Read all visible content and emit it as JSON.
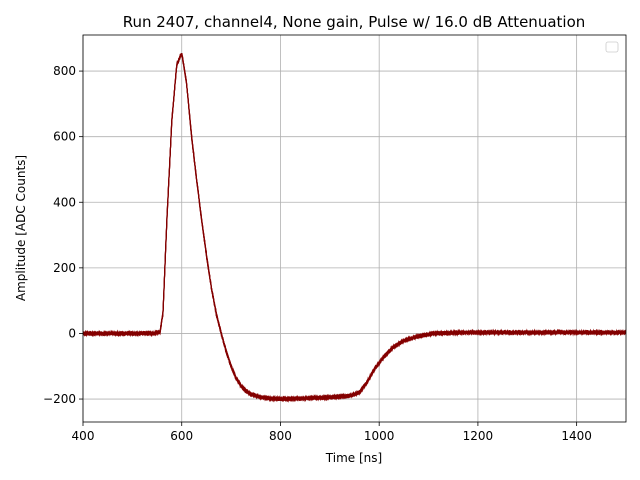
{
  "chart_data": {
    "type": "line",
    "title": "Run 2407, channel4, None gain, Pulse w/ 16.0 dB Attenuation",
    "xlabel": "Time [ns]",
    "ylabel": "Amplitude [ADC Counts]",
    "xlim": [
      400,
      1500
    ],
    "ylim": [
      -270,
      910
    ],
    "xticks": [
      400,
      600,
      800,
      1000,
      1200,
      1400
    ],
    "yticks": [
      -200,
      0,
      200,
      400,
      600,
      800
    ],
    "xtick_labels": [
      "400",
      "600",
      "800",
      "1000",
      "1200",
      "1400"
    ],
    "ytick_labels": [
      "−200",
      "0",
      "200",
      "400",
      "600",
      "800"
    ],
    "grid": true,
    "legend": {
      "position": "top-right",
      "entries": []
    },
    "series": [
      {
        "color": "#800000",
        "band_color": "#8b0000",
        "noise_amplitude": 12,
        "x": [
          400,
          540,
          556,
          562,
          570,
          580,
          590,
          600,
          610,
          620,
          630,
          640,
          650,
          660,
          670,
          680,
          690,
          700,
          710,
          720,
          730,
          740,
          760,
          780,
          800,
          850,
          900,
          940,
          960,
          975,
          990,
          1010,
          1030,
          1050,
          1070,
          1090,
          1110,
          1150,
          1200,
          1300,
          1400,
          1500
        ],
        "y": [
          0,
          0,
          5,
          60,
          350,
          650,
          820,
          855,
          760,
          600,
          470,
          350,
          240,
          140,
          60,
          0,
          -55,
          -100,
          -135,
          -160,
          -175,
          -185,
          -195,
          -198,
          -200,
          -198,
          -195,
          -190,
          -180,
          -150,
          -110,
          -70,
          -40,
          -22,
          -12,
          -5,
          0,
          2,
          3,
          3,
          3,
          3
        ]
      }
    ]
  }
}
